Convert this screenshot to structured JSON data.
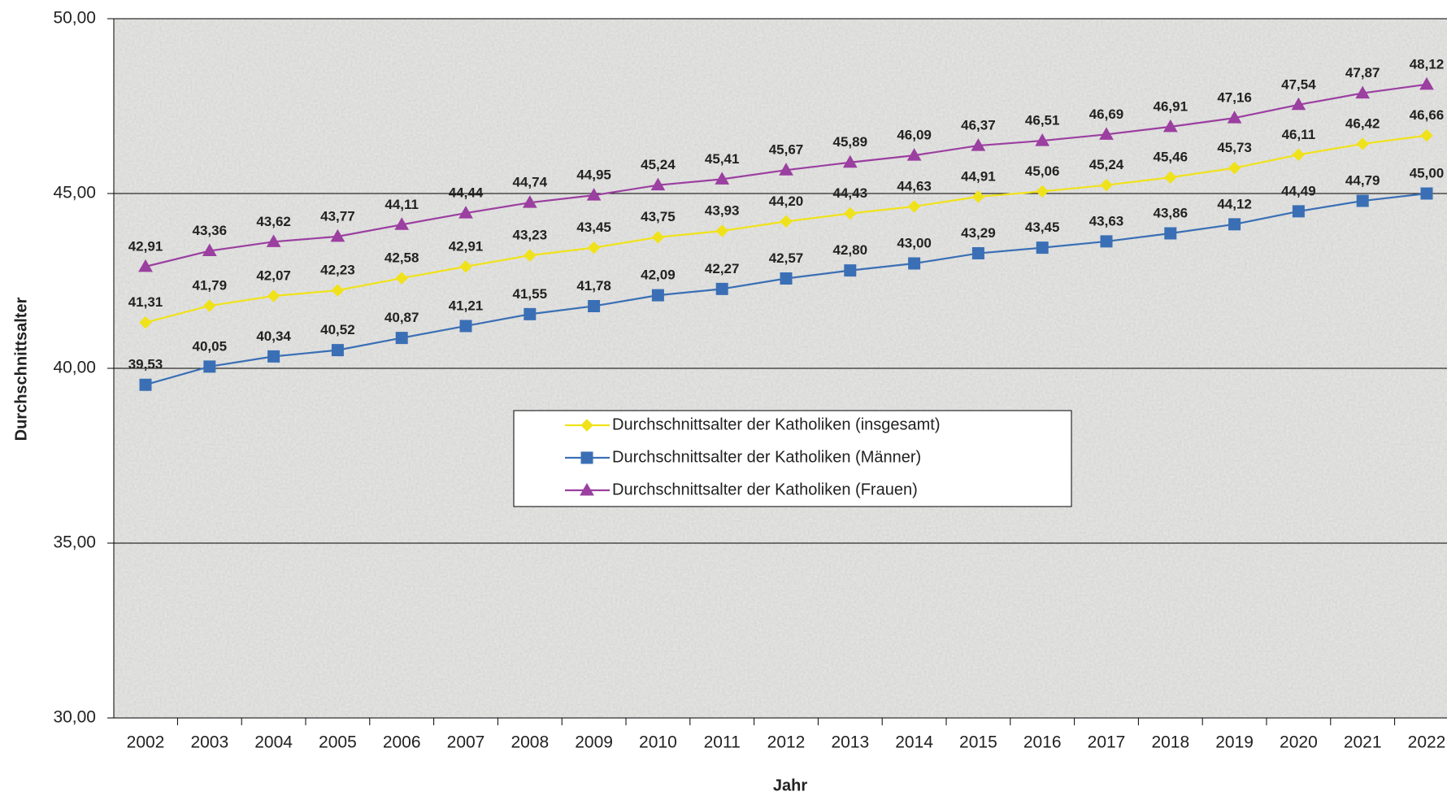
{
  "chart_data": {
    "type": "line",
    "x_label": "Jahr",
    "y_label": "Durchschnittsalter",
    "categories": [
      "2002",
      "2003",
      "2004",
      "2005",
      "2006",
      "2007",
      "2008",
      "2009",
      "2010",
      "2011",
      "2012",
      "2013",
      "2014",
      "2015",
      "2016",
      "2017",
      "2018",
      "2019",
      "2020",
      "2021",
      "2022"
    ],
    "ylim": [
      30,
      50
    ],
    "yticks": [
      {
        "value": 30,
        "label": "30,00"
      },
      {
        "value": 35,
        "label": "35,00"
      },
      {
        "value": 40,
        "label": "40,00"
      },
      {
        "value": 45,
        "label": "45,00"
      },
      {
        "value": 50,
        "label": "50,00"
      }
    ],
    "grid": true,
    "series": [
      {
        "name": "Durchschnittsalter der Katholiken (insgesamt)",
        "color": "#f0e21a",
        "marker": "diamond",
        "values": [
          41.31,
          41.79,
          42.07,
          42.23,
          42.58,
          42.91,
          43.23,
          43.45,
          43.75,
          43.93,
          44.2,
          44.43,
          44.63,
          44.91,
          45.06,
          45.24,
          45.46,
          45.73,
          46.11,
          46.42,
          46.66
        ],
        "value_labels": [
          "41,31",
          "41,79",
          "42,07",
          "42,23",
          "42,58",
          "42,91",
          "43,23",
          "43,45",
          "43,75",
          "43,93",
          "44,20",
          "44,43",
          "44,63",
          "44,91",
          "45,06",
          "45,24",
          "45,46",
          "45,73",
          "46,11",
          "46,42",
          "46,66"
        ]
      },
      {
        "name": "Durchschnittsalter der Katholiken (Männer)",
        "color": "#3a6fb5",
        "marker": "square",
        "values": [
          39.53,
          40.05,
          40.34,
          40.52,
          40.87,
          41.21,
          41.55,
          41.78,
          42.09,
          42.27,
          42.57,
          42.8,
          43.0,
          43.29,
          43.45,
          43.63,
          43.86,
          44.12,
          44.49,
          44.79,
          45.0
        ],
        "value_labels": [
          "39,53",
          "40,05",
          "40,34",
          "40,52",
          "40,87",
          "41,21",
          "41,55",
          "41,78",
          "42,09",
          "42,27",
          "42,57",
          "42,80",
          "43,00",
          "43,29",
          "43,45",
          "43,63",
          "43,86",
          "44,12",
          "44,49",
          "44,79",
          "45,00"
        ]
      },
      {
        "name": "Durchschnittsalter der Katholiken (Frauen)",
        "color": "#9b3fa0",
        "marker": "triangle",
        "values": [
          42.91,
          43.36,
          43.62,
          43.77,
          44.11,
          44.44,
          44.74,
          44.95,
          45.24,
          45.41,
          45.67,
          45.89,
          46.09,
          46.37,
          46.51,
          46.69,
          46.91,
          47.16,
          47.54,
          47.87,
          48.12
        ],
        "value_labels": [
          "42,91",
          "43,36",
          "43,62",
          "43,77",
          "44,11",
          "44,44",
          "44,74",
          "44,95",
          "45,24",
          "45,41",
          "45,67",
          "45,89",
          "46,09",
          "46,37",
          "46,51",
          "46,69",
          "46,91",
          "47,16",
          "47,54",
          "47,87",
          "48,12"
        ]
      }
    ]
  }
}
